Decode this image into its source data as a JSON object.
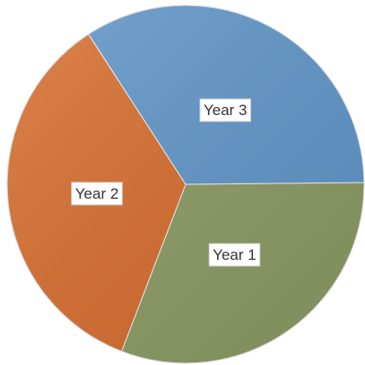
{
  "chart_data": {
    "type": "pie",
    "labels": [
      "Year 1",
      "Year 2",
      "Year 3"
    ],
    "values": [
      31,
      35,
      34
    ],
    "colors": [
      "#8b9a63",
      "#d66c2c",
      "#5f95c8"
    ],
    "data_labels": [
      "Year 1",
      "Year 2",
      "Year 3"
    ],
    "title": "",
    "legend": "none"
  }
}
